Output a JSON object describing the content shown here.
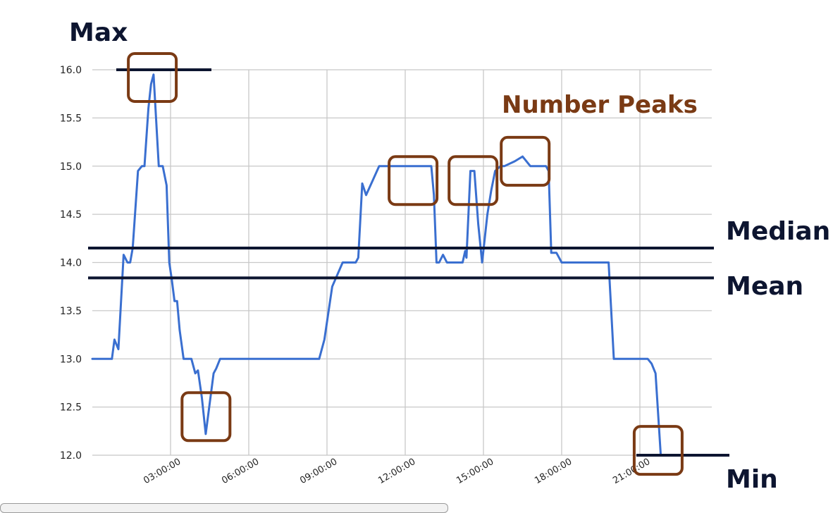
{
  "chart_data": {
    "type": "line",
    "ylim": [
      12.0,
      16.0
    ],
    "yticks": [
      "12.0",
      "12.5",
      "13.0",
      "13.5",
      "14.0",
      "14.5",
      "15.0",
      "15.5",
      "16.0"
    ],
    "x_tick_hours": [
      3,
      6,
      9,
      12,
      15,
      18,
      21
    ],
    "xticks": [
      "03:00:00",
      "06:00:00",
      "09:00:00",
      "12:00:00",
      "15:00:00",
      "18:00:00",
      "21:00:00"
    ],
    "grid": true,
    "series": [
      {
        "color": "#3a6fd0",
        "x": [
          0.0,
          0.75,
          0.85,
          1.0,
          1.2,
          1.35,
          1.45,
          1.55,
          1.75,
          1.9,
          2.0,
          2.15,
          2.25,
          2.35,
          2.55,
          2.7,
          2.85,
          2.95,
          3.05,
          3.15,
          3.25,
          3.35,
          3.5,
          3.55,
          3.65,
          3.8,
          3.95,
          4.05,
          4.2,
          4.35,
          4.65,
          4.75,
          4.9,
          5.0,
          5.25,
          5.4,
          5.6,
          5.8,
          6.0,
          6.5,
          7.0,
          7.5,
          8.0,
          8.3,
          8.5,
          8.7,
          8.9,
          9.2,
          9.6,
          9.95,
          10.1,
          10.2,
          10.35,
          10.5,
          11.0,
          11.5,
          12.0,
          12.5,
          13.0,
          13.1,
          13.2,
          13.3,
          13.45,
          13.6,
          13.9,
          14.2,
          14.3,
          14.35,
          14.5,
          14.65,
          14.8,
          14.95,
          15.15,
          15.3,
          15.45,
          15.65,
          15.8,
          16.2,
          16.5,
          16.8,
          17.1,
          17.4,
          17.5,
          17.6,
          17.8,
          18.0,
          18.5,
          19.0,
          19.4,
          19.6,
          19.8,
          20.0,
          20.5,
          20.9,
          21.1,
          21.3,
          21.45,
          21.6,
          21.8,
          22.2
        ],
        "values": [
          13.0,
          13.0,
          13.2,
          13.1,
          14.08,
          14.0,
          14.0,
          14.15,
          14.95,
          15.0,
          15.0,
          15.6,
          15.85,
          15.95,
          15.0,
          15.0,
          14.8,
          14.0,
          13.82,
          13.6,
          13.6,
          13.3,
          13.0,
          13.0,
          13.0,
          13.0,
          12.85,
          12.88,
          12.6,
          12.22,
          12.85,
          12.9,
          13.0,
          13.0,
          13.0,
          13.0,
          13.0,
          13.0,
          13.0,
          13.0,
          13.0,
          13.0,
          13.0,
          13.0,
          13.0,
          13.0,
          13.2,
          13.75,
          14.0,
          14.0,
          14.0,
          14.05,
          14.82,
          14.7,
          15.0,
          15.0,
          15.0,
          15.0,
          15.0,
          14.7,
          14.0,
          14.0,
          14.08,
          14.0,
          14.0,
          14.0,
          14.12,
          14.05,
          14.95,
          14.95,
          14.4,
          14.0,
          14.5,
          14.75,
          14.95,
          15.0,
          15.0,
          15.05,
          15.1,
          15.0,
          15.0,
          15.0,
          14.95,
          14.1,
          14.1,
          14.0,
          14.0,
          14.0,
          14.0,
          14.0,
          14.0,
          13.0,
          13.0,
          13.0,
          13.0,
          13.0,
          12.95,
          12.85,
          12.0,
          12.0
        ]
      }
    ],
    "reference_lines": [
      {
        "label": "Max",
        "value": 16.0,
        "color": "#0d1530"
      },
      {
        "label": "Median",
        "value": 14.15,
        "color": "#0d1530"
      },
      {
        "label": "Mean",
        "value": 13.84,
        "color": "#0d1530"
      },
      {
        "label": "Min",
        "value": 12.0,
        "color": "#0d1530"
      }
    ],
    "peaks_label": "Number Peaks",
    "peaks_color": "#7a3a14",
    "highlight_points": [
      {
        "x": 2.3,
        "y": 15.92
      },
      {
        "x": 4.36,
        "y": 12.4
      },
      {
        "x": 12.3,
        "y": 14.85
      },
      {
        "x": 14.6,
        "y": 14.85
      },
      {
        "x": 16.6,
        "y": 15.05
      },
      {
        "x": 21.7,
        "y": 12.05
      }
    ]
  }
}
